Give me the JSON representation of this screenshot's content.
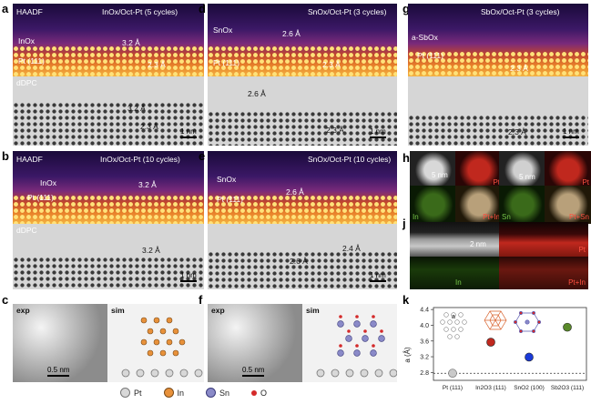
{
  "panels": {
    "a": {
      "letter": "a",
      "haadf_label": "HAADF",
      "title": "InOx/Oct-Pt (5 cycles)",
      "film": "InOx",
      "substrate": "Pt (111)",
      "d1": "3.2 Å",
      "d2": "2.3 Å",
      "dpc_label": "dDPC",
      "dpc_d1": "3.2 Å",
      "dpc_d2": "2.3 Å",
      "scale": "1 nm"
    },
    "b": {
      "letter": "b",
      "haadf_label": "HAADF",
      "title": "InOx/Oct-Pt (10 cycles)",
      "film": "InOx",
      "substrate": "Pt (111)",
      "d1": "3.2 Å",
      "dpc_label": "dDPC",
      "dpc_d1": "3.2 Å",
      "scale": "1 nm"
    },
    "c": {
      "letter": "c",
      "exp": "exp",
      "sim": "sim",
      "scale": "0.5 nm"
    },
    "d": {
      "letter": "d",
      "title": "SnOx/Oct-Pt (3 cycles)",
      "film": "SnOx",
      "substrate": "Pt (111)",
      "d1": "2.6 Å",
      "d2": "2.3 Å",
      "dpc_d1": "2.6 Å",
      "dpc_d2": "2.3 Å",
      "scale": "1 nm"
    },
    "e": {
      "letter": "e",
      "title": "SnOx/Oct-Pt (10 cycles)",
      "film": "SnOx",
      "substrate": "Pt (111)",
      "d1": "2.6 Å",
      "dpc_d1": "2.6 Å",
      "dpc_d2": "2.4 Å",
      "scale": "1 nm"
    },
    "f": {
      "letter": "f",
      "exp": "exp",
      "sim": "sim",
      "scale": "0.5 nm"
    },
    "g": {
      "letter": "g",
      "title": "SbOx/Oct-Pt  (3 cycles)",
      "film": "a-SbOx",
      "substrate": "Pt (111)",
      "d1": "2.3 Å",
      "dpc_d1": "2.3 Å",
      "scale": "1 nm"
    },
    "h": {
      "letter": "h",
      "scale": "5 nm",
      "maps": [
        "Pt",
        "In",
        "Pt+In"
      ]
    },
    "i": {
      "letter": "i",
      "scale": "5 nm",
      "maps": [
        "Pt",
        "Sn",
        "Pt+Sn"
      ]
    },
    "j": {
      "letter": "j",
      "scale": "2 nm",
      "maps": [
        "Pt",
        "In",
        "Pt+In"
      ]
    },
    "k": {
      "letter": "k",
      "ylabel": "a (Å)",
      "yticks": [
        "4.4",
        "4.0",
        "3.6",
        "3.2",
        "2.8"
      ],
      "xticks": [
        "Pt (111)",
        "In2O3 (111)",
        "SnO2 (100)",
        "Sb2O3 (111)"
      ],
      "inset": "a"
    }
  },
  "legend": {
    "pt": "Pt",
    "in": "In",
    "sn": "Sn",
    "o": "O"
  },
  "colors": {
    "pt": "#c9c9c9",
    "in": "#e8913a",
    "sn": "#8a8ac8",
    "o": "#d42a2a",
    "green": "#5a8a2a",
    "blue": "#1a3ad8",
    "red": "#c0281e"
  },
  "chart_data": {
    "type": "scatter",
    "title": "",
    "xlabel": "",
    "ylabel": "a (Å)",
    "categories": [
      "Pt (111)",
      "In2O3 (111)",
      "SnO2 (100)",
      "Sb2O3 (111)"
    ],
    "values": [
      2.78,
      3.57,
      3.19,
      3.95
    ],
    "ylim": [
      2.6,
      4.45
    ],
    "reference_line": 2.78
  }
}
